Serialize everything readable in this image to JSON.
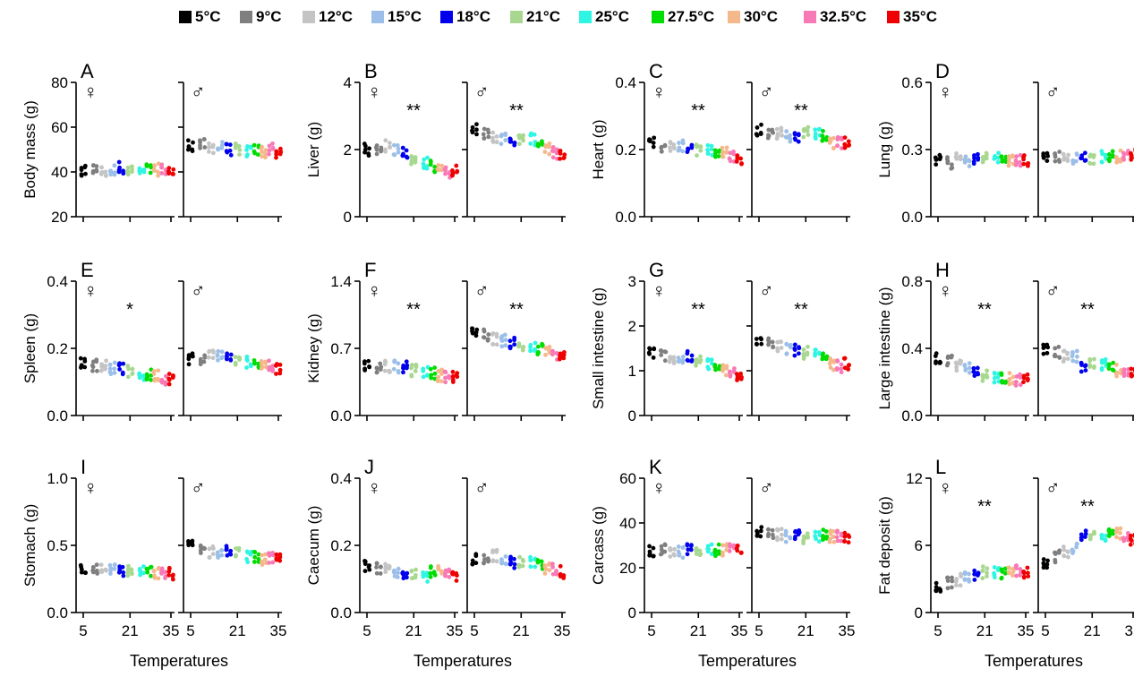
{
  "legend": [
    {
      "label": "5°C",
      "color": "#000000"
    },
    {
      "label": "9°C",
      "color": "#7f7f7f"
    },
    {
      "label": "12°C",
      "color": "#c4c4c4"
    },
    {
      "label": "15°C",
      "color": "#9bbfe8"
    },
    {
      "label": "18°C",
      "color": "#0000ee"
    },
    {
      "label": "21°C",
      "color": "#a8d88f"
    },
    {
      "label": "25°C",
      "color": "#2ff5e3"
    },
    {
      "label": "27.5°C",
      "color": "#00dd00"
    },
    {
      "label": "30°C",
      "color": "#f5b88a"
    },
    {
      "label": "32.5°C",
      "color": "#f77ab7"
    },
    {
      "label": "35°C",
      "color": "#ee0000"
    }
  ],
  "xlabel": "Temperatures",
  "x_ticks": [
    "5",
    "21",
    "35"
  ],
  "female_symbol": "♀",
  "male_symbol": "♂",
  "chart_data": [
    {
      "type": "scatter",
      "panel": "A",
      "ylabel": "Body mass (g)",
      "ylim": [
        20,
        80
      ],
      "yticks": [
        "20",
        "40",
        "60",
        "80"
      ],
      "sig_female": "",
      "sig_male": "",
      "female_means": [
        40,
        41,
        40,
        41,
        42,
        40,
        40,
        41,
        41,
        41,
        40
      ],
      "male_means": [
        52,
        52,
        51,
        51,
        50,
        50,
        49,
        50,
        49,
        50,
        48
      ]
    },
    {
      "type": "scatter",
      "panel": "B",
      "ylabel": "Liver (g)",
      "ylim": [
        0,
        4
      ],
      "yticks": [
        "0",
        "2",
        "4"
      ],
      "sig_female": "**",
      "sig_male": "**",
      "female_means": [
        2.0,
        2.0,
        2.1,
        2.0,
        1.9,
        1.7,
        1.6,
        1.5,
        1.4,
        1.3,
        1.4
      ],
      "male_means": [
        2.6,
        2.5,
        2.4,
        2.3,
        2.3,
        2.3,
        2.3,
        2.2,
        2.0,
        1.9,
        1.8
      ]
    },
    {
      "type": "scatter",
      "panel": "C",
      "ylabel": "Heart (g)",
      "ylim": [
        0,
        0.4
      ],
      "yticks": [
        "0.0",
        "0.2",
        "0.4"
      ],
      "sig_female": "**",
      "sig_male": "**",
      "female_means": [
        0.22,
        0.21,
        0.21,
        0.21,
        0.21,
        0.2,
        0.2,
        0.19,
        0.19,
        0.18,
        0.17
      ],
      "male_means": [
        0.26,
        0.25,
        0.25,
        0.24,
        0.24,
        0.25,
        0.25,
        0.24,
        0.22,
        0.22,
        0.22
      ]
    },
    {
      "type": "scatter",
      "panel": "D",
      "ylabel": "Lung (g)",
      "ylim": [
        0,
        0.6
      ],
      "yticks": [
        "0.0",
        "0.3",
        "0.6"
      ],
      "sig_female": "",
      "sig_male": "",
      "female_means": [
        0.25,
        0.24,
        0.26,
        0.25,
        0.26,
        0.26,
        0.27,
        0.25,
        0.25,
        0.25,
        0.25
      ],
      "male_means": [
        0.27,
        0.27,
        0.26,
        0.26,
        0.26,
        0.26,
        0.27,
        0.27,
        0.27,
        0.27,
        0.28
      ]
    },
    {
      "type": "scatter",
      "panel": "E",
      "ylabel": "Spleen (g)",
      "ylim": [
        0,
        0.4
      ],
      "yticks": [
        "0.0",
        "0.2",
        "0.4"
      ],
      "sig_female": "*",
      "sig_male": "",
      "female_means": [
        0.16,
        0.15,
        0.15,
        0.14,
        0.14,
        0.13,
        0.12,
        0.12,
        0.12,
        0.11,
        0.11
      ],
      "male_means": [
        0.17,
        0.17,
        0.18,
        0.18,
        0.17,
        0.16,
        0.16,
        0.16,
        0.15,
        0.15,
        0.14
      ]
    },
    {
      "type": "scatter",
      "panel": "F",
      "ylabel": "Kidney (g)",
      "ylim": [
        0,
        1.4
      ],
      "yticks": [
        "0.0",
        "0.7",
        "1.4"
      ],
      "sig_female": "**",
      "sig_male": "**",
      "female_means": [
        0.52,
        0.51,
        0.51,
        0.51,
        0.5,
        0.47,
        0.45,
        0.44,
        0.42,
        0.41,
        0.4
      ],
      "male_means": [
        0.88,
        0.84,
        0.8,
        0.78,
        0.76,
        0.72,
        0.7,
        0.69,
        0.66,
        0.64,
        0.62
      ]
    },
    {
      "type": "scatter",
      "panel": "G",
      "ylabel": "Small intestine (g)",
      "ylim": [
        0,
        3
      ],
      "yticks": [
        "0",
        "1",
        "2",
        "3"
      ],
      "sig_female": "**",
      "sig_male": "**",
      "female_means": [
        1.4,
        1.35,
        1.3,
        1.25,
        1.3,
        1.2,
        1.15,
        1.05,
        1.0,
        0.95,
        0.9
      ],
      "male_means": [
        1.7,
        1.65,
        1.55,
        1.5,
        1.45,
        1.4,
        1.35,
        1.25,
        1.15,
        1.1,
        1.15
      ]
    },
    {
      "type": "scatter",
      "panel": "H",
      "ylabel": "Large intestine (g)",
      "ylim": [
        0,
        0.8
      ],
      "yticks": [
        "0.0",
        "0.4",
        "0.8"
      ],
      "sig_female": "**",
      "sig_male": "**",
      "female_means": [
        0.34,
        0.32,
        0.3,
        0.28,
        0.25,
        0.24,
        0.23,
        0.23,
        0.22,
        0.21,
        0.21
      ],
      "male_means": [
        0.4,
        0.38,
        0.35,
        0.35,
        0.28,
        0.3,
        0.3,
        0.28,
        0.27,
        0.25,
        0.25
      ]
    },
    {
      "type": "scatter",
      "panel": "I",
      "ylabel": "Stomach (g)",
      "ylim": [
        0,
        1.0
      ],
      "yticks": [
        "0.0",
        "0.5",
        "1.0"
      ],
      "sig_female": "",
      "sig_male": "",
      "female_means": [
        0.33,
        0.33,
        0.34,
        0.32,
        0.31,
        0.31,
        0.3,
        0.3,
        0.29,
        0.29,
        0.29
      ],
      "male_means": [
        0.5,
        0.48,
        0.45,
        0.44,
        0.46,
        0.44,
        0.42,
        0.41,
        0.4,
        0.4,
        0.39
      ]
    },
    {
      "type": "scatter",
      "panel": "J",
      "ylabel": "Caecum (g)",
      "ylim": [
        0,
        0.4
      ],
      "yticks": [
        "0.0",
        "0.2",
        "0.4"
      ],
      "sig_female": "",
      "sig_male": "",
      "female_means": [
        0.14,
        0.13,
        0.13,
        0.12,
        0.12,
        0.12,
        0.11,
        0.12,
        0.12,
        0.11,
        0.11
      ],
      "male_means": [
        0.16,
        0.16,
        0.17,
        0.15,
        0.15,
        0.15,
        0.15,
        0.14,
        0.13,
        0.13,
        0.12
      ]
    },
    {
      "type": "scatter",
      "panel": "K",
      "ylabel": "Carcass (g)",
      "ylim": [
        0,
        60
      ],
      "yticks": [
        "0",
        "20",
        "40",
        "60"
      ],
      "sig_female": "",
      "sig_male": "",
      "female_means": [
        27,
        28,
        27,
        27,
        28,
        27,
        28,
        28,
        28,
        28,
        28
      ],
      "male_means": [
        36,
        35,
        35,
        34,
        34,
        33,
        34,
        35,
        34,
        34,
        33
      ]
    },
    {
      "type": "scatter",
      "panel": "L",
      "ylabel": "Fat deposit (g)",
      "ylim": [
        0,
        12
      ],
      "yticks": [
        "0",
        "6",
        "12"
      ],
      "sig_female": "**",
      "sig_male": "**",
      "female_means": [
        2.3,
        2.6,
        2.9,
        3.2,
        3.4,
        3.6,
        3.5,
        3.4,
        3.8,
        3.7,
        3.6
      ],
      "male_means": [
        4.5,
        5.0,
        5.4,
        5.8,
        7.0,
        6.8,
        6.7,
        6.9,
        7.0,
        6.6,
        6.5
      ]
    }
  ]
}
